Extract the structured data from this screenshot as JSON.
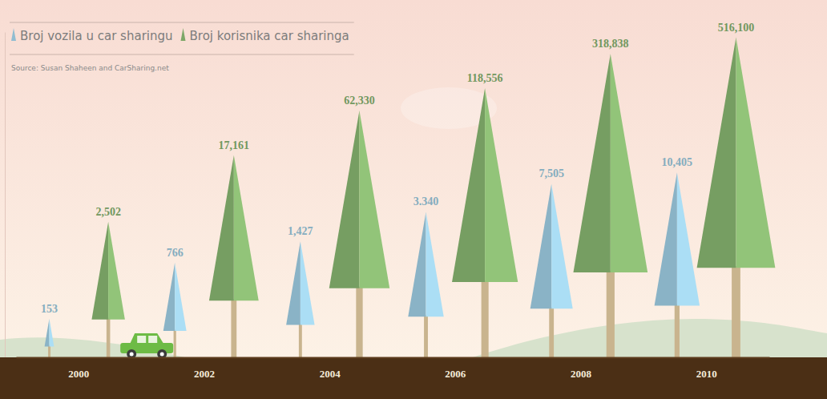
{
  "chart_data": {
    "type": "bar",
    "annotations": [
      "Source: Susan Shaheen and CarSharing.net"
    ],
    "categories": [
      "2000",
      "2002",
      "2004",
      "2006",
      "2008",
      "2010"
    ],
    "series": [
      {
        "name": "Broj vozila u car sharingu",
        "color": "#9ccbe0",
        "values": [
          153,
          766,
          1427,
          3340,
          7505,
          10405
        ],
        "value_labels": [
          "153",
          "766",
          "1,427",
          "3.340",
          "7,505",
          "10,405"
        ]
      },
      {
        "name": "Broj korisnika car sharinga",
        "color": "#86b36f",
        "values": [
          2502,
          17161,
          62330,
          118556,
          318838,
          516100
        ],
        "value_labels": [
          "2,502",
          "17,161",
          "62,330",
          "118,556",
          "318,838",
          "516,100"
        ]
      }
    ],
    "ylim": [
      50,
      600000
    ],
    "yticks": [],
    "log": "y",
    "data_labels": true,
    "tick_labels": "x",
    "legend": "top-left"
  }
}
